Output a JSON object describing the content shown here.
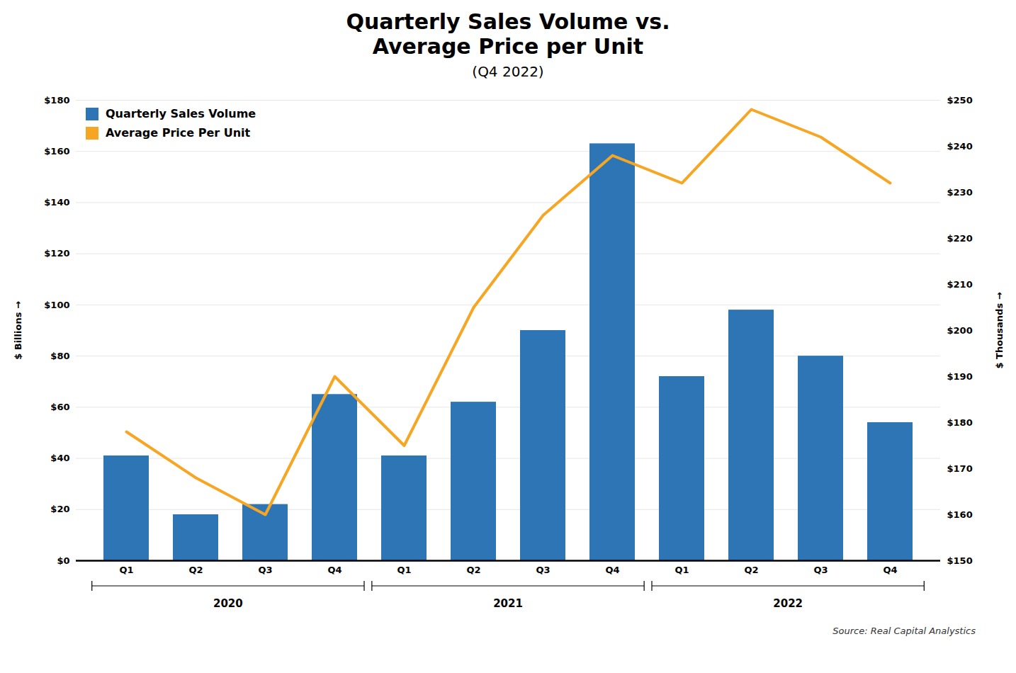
{
  "chart_data": {
    "type": "bar",
    "title": "Quarterly Sales Volume vs.\nAverage Price per Unit",
    "subtitle": "(Q4 2022)",
    "source": "Source: Real Capital Analystics",
    "categories": [
      "Q1",
      "Q2",
      "Q3",
      "Q4",
      "Q1",
      "Q2",
      "Q3",
      "Q4",
      "Q1",
      "Q2",
      "Q3",
      "Q4"
    ],
    "group_labels": [
      "2020",
      "2021",
      "2022"
    ],
    "series": [
      {
        "name": "Quarterly Sales Volume",
        "type": "bar",
        "color": "#2E75B6",
        "values": [
          41,
          18,
          22,
          65,
          41,
          62,
          90,
          163,
          72,
          98,
          80,
          54
        ]
      },
      {
        "name": "Average Price Per Unit",
        "type": "line",
        "axis": "y2",
        "color": "#F6A623",
        "values": [
          178,
          168,
          160,
          190,
          175,
          205,
          225,
          238,
          232,
          248,
          242,
          232
        ]
      }
    ],
    "ylabel": "$ Billions",
    "y2label": "$ Thousands",
    "ylim": [
      0,
      180
    ],
    "yticks": [
      {
        "value": 0,
        "label": "$0"
      },
      {
        "value": 20,
        "label": "$20"
      },
      {
        "value": 40,
        "label": "$40"
      },
      {
        "value": 60,
        "label": "$60"
      },
      {
        "value": 80,
        "label": "$80"
      },
      {
        "value": 100,
        "label": "$100"
      },
      {
        "value": 120,
        "label": "$120"
      },
      {
        "value": 140,
        "label": "$140"
      },
      {
        "value": 160,
        "label": "$160"
      },
      {
        "value": 180,
        "label": "$180"
      }
    ],
    "y2lim": [
      150,
      250
    ],
    "y2ticks": [
      {
        "value": 150,
        "label": "$150"
      },
      {
        "value": 160,
        "label": "$160"
      },
      {
        "value": 170,
        "label": "$170"
      },
      {
        "value": 180,
        "label": "$180"
      },
      {
        "value": 190,
        "label": "$190"
      },
      {
        "value": 200,
        "label": "$200"
      },
      {
        "value": 210,
        "label": "$210"
      },
      {
        "value": 220,
        "label": "$220"
      },
      {
        "value": 230,
        "label": "$230"
      },
      {
        "value": 240,
        "label": "$240"
      },
      {
        "value": 250,
        "label": "$250"
      }
    ],
    "grid": true,
    "legend": "upper left"
  }
}
